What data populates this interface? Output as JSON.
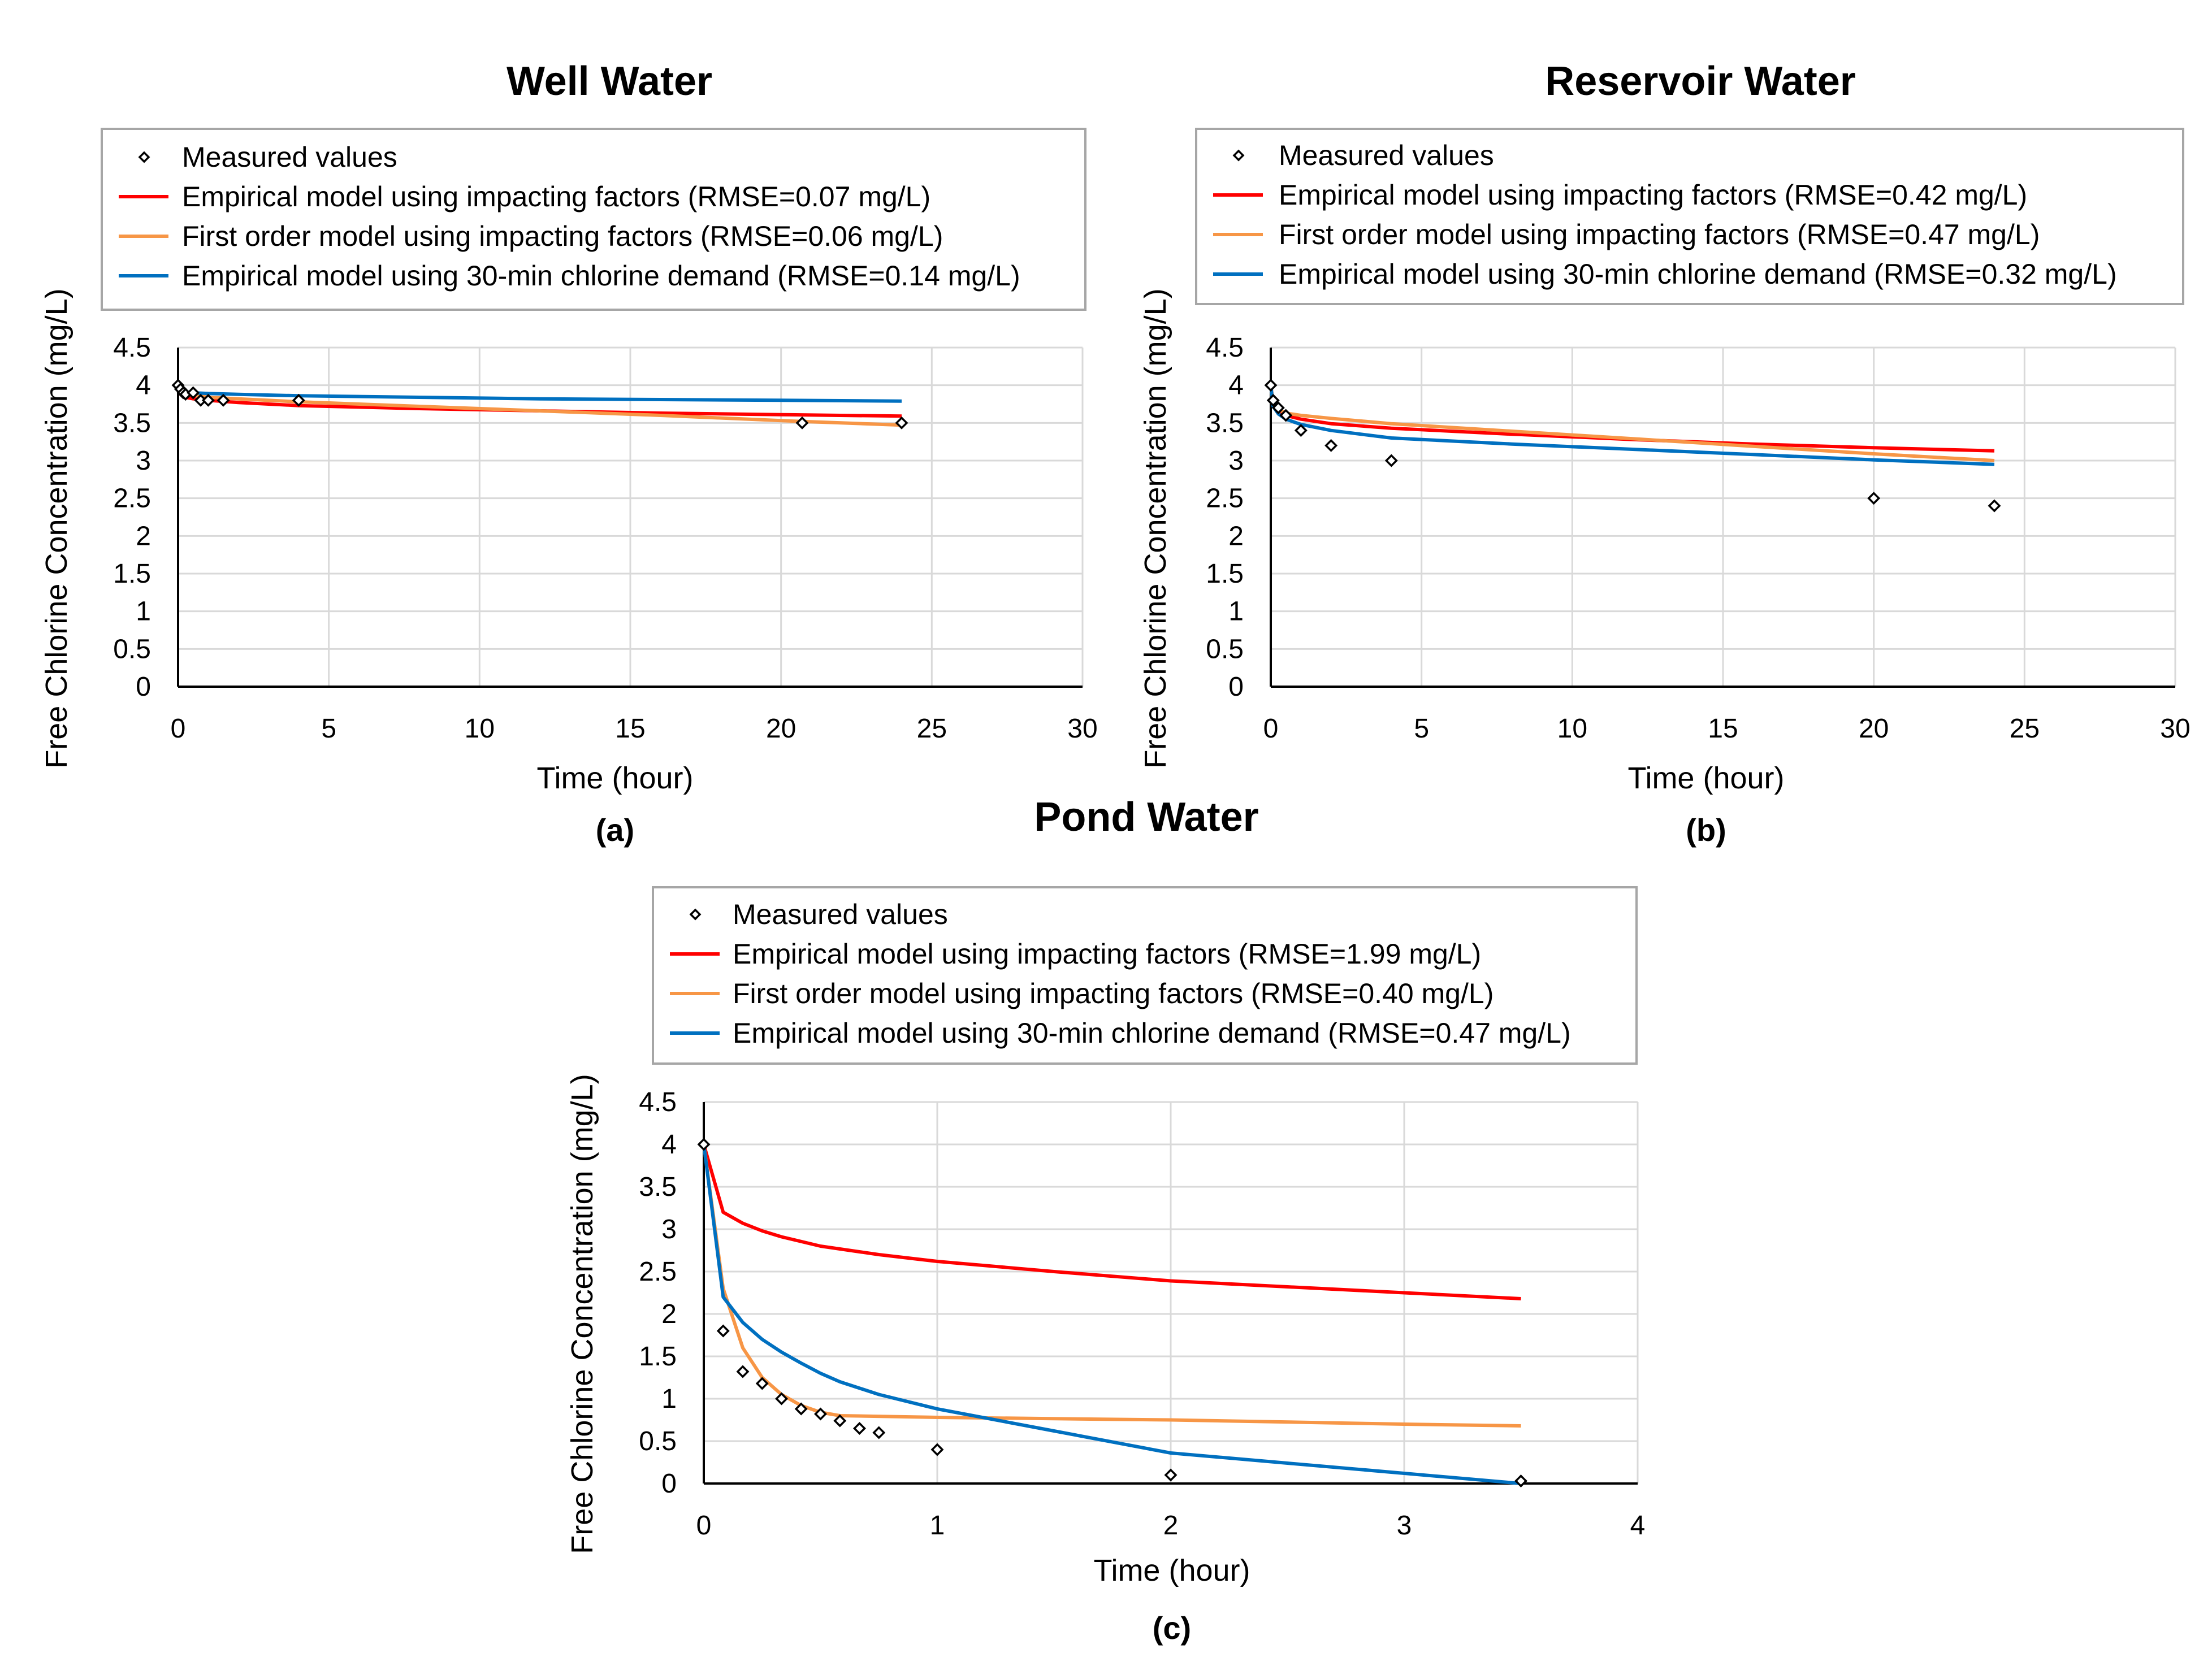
{
  "colors": {
    "empirical": "#ff0000",
    "first_order": "#f79646",
    "demand": "#0070c0",
    "measured": "#000000",
    "grid": "#d9d9d9"
  },
  "chart_data": [
    {
      "id": "well",
      "type": "scatter+line",
      "title": "Well Water",
      "panel_label": "(a)",
      "xlabel": "Time (hour)",
      "ylabel": "Free Chlorine Concentration (mg/L)",
      "xlim": [
        0,
        30
      ],
      "ylim": [
        0,
        4.5
      ],
      "xticks": [
        0,
        5,
        10,
        15,
        20,
        25,
        30
      ],
      "yticks": [
        0,
        0.5,
        1,
        1.5,
        2,
        2.5,
        3,
        3.5,
        4,
        4.5
      ],
      "legend": [
        {
          "key": "measured",
          "label": "Measured values"
        },
        {
          "key": "empirical",
          "label": "Empirical model using impacting factors (RMSE=0.07 mg/L)"
        },
        {
          "key": "first_order",
          "label": "First order model using impacting factors (RMSE=0.06 mg/L)"
        },
        {
          "key": "demand",
          "label": "Empirical model using 30-min chlorine demand (RMSE=0.14 mg/L)"
        }
      ],
      "measured": {
        "x": [
          0,
          0.08,
          0.17,
          0.25,
          0.5,
          0.75,
          1,
          1.5,
          4,
          20.7,
          24
        ],
        "y": [
          4.0,
          3.95,
          3.9,
          3.88,
          3.9,
          3.8,
          3.8,
          3.8,
          3.8,
          3.5,
          3.5
        ]
      },
      "series": [
        {
          "key": "empirical",
          "x": [
            0,
            0.08,
            0.25,
            0.5,
            1,
            2,
            4,
            8,
            12,
            16,
            20,
            24
          ],
          "y": [
            4.0,
            3.88,
            3.84,
            3.82,
            3.8,
            3.77,
            3.73,
            3.69,
            3.66,
            3.63,
            3.61,
            3.59
          ]
        },
        {
          "key": "first_order",
          "x": [
            0,
            0.08,
            0.25,
            0.5,
            1,
            2,
            4,
            8,
            12,
            16,
            20,
            24
          ],
          "y": [
            4.0,
            3.95,
            3.9,
            3.87,
            3.84,
            3.82,
            3.78,
            3.72,
            3.66,
            3.6,
            3.53,
            3.47
          ]
        },
        {
          "key": "demand",
          "x": [
            0,
            0.08,
            0.25,
            0.5,
            1,
            2,
            4,
            8,
            12,
            16,
            20,
            24
          ],
          "y": [
            4.0,
            3.93,
            3.91,
            3.9,
            3.89,
            3.88,
            3.86,
            3.84,
            3.82,
            3.81,
            3.8,
            3.79
          ]
        }
      ]
    },
    {
      "id": "reservoir",
      "type": "scatter+line",
      "title": "Reservoir Water",
      "panel_label": "(b)",
      "xlabel": "Time (hour)",
      "ylabel": "Free Chlorine Concentration (mg/L)",
      "xlim": [
        0,
        30
      ],
      "ylim": [
        0,
        4.5
      ],
      "xticks": [
        0,
        5,
        10,
        15,
        20,
        25,
        30
      ],
      "yticks": [
        0,
        0.5,
        1,
        1.5,
        2,
        2.5,
        3,
        3.5,
        4,
        4.5
      ],
      "legend": [
        {
          "key": "measured",
          "label": "Measured values"
        },
        {
          "key": "empirical",
          "label": "Empirical model using impacting factors (RMSE=0.42 mg/L)"
        },
        {
          "key": "first_order",
          "label": "First order model using impacting factors (RMSE=0.47 mg/L)"
        },
        {
          "key": "demand",
          "label": "Empirical model using 30-min chlorine demand (RMSE=0.32 mg/L)"
        }
      ],
      "measured": {
        "x": [
          0,
          0.08,
          0.25,
          0.5,
          1,
          2,
          4,
          20,
          24
        ],
        "y": [
          4.0,
          3.8,
          3.7,
          3.6,
          3.4,
          3.2,
          3.0,
          2.5,
          2.4
        ]
      },
      "series": [
        {
          "key": "empirical",
          "x": [
            0,
            0.08,
            0.25,
            0.5,
            1,
            2,
            4,
            8,
            12,
            16,
            20,
            24
          ],
          "y": [
            4.0,
            3.75,
            3.66,
            3.6,
            3.55,
            3.49,
            3.43,
            3.35,
            3.28,
            3.22,
            3.17,
            3.13
          ]
        },
        {
          "key": "first_order",
          "x": [
            0,
            0.08,
            0.25,
            0.5,
            1,
            2,
            4,
            8,
            12,
            16,
            20,
            24
          ],
          "y": [
            4.0,
            3.75,
            3.68,
            3.63,
            3.6,
            3.56,
            3.49,
            3.39,
            3.29,
            3.19,
            3.09,
            3.0
          ]
        },
        {
          "key": "demand",
          "x": [
            0,
            0.08,
            0.25,
            0.5,
            1,
            2,
            4,
            8,
            12,
            16,
            20,
            24
          ],
          "y": [
            4.0,
            3.72,
            3.62,
            3.55,
            3.48,
            3.4,
            3.3,
            3.22,
            3.15,
            3.08,
            3.01,
            2.95
          ]
        }
      ]
    },
    {
      "id": "pond",
      "type": "scatter+line",
      "title": "Pond Water",
      "panel_label": "(c)",
      "xlabel": "Time (hour)",
      "ylabel": "Free Chlorine Concentration (mg/L)",
      "xlim": [
        0,
        4
      ],
      "ylim": [
        0,
        4.5
      ],
      "xticks": [
        0,
        1,
        2,
        3,
        4
      ],
      "yticks": [
        0,
        0.5,
        1,
        1.5,
        2,
        2.5,
        3,
        3.5,
        4,
        4.5
      ],
      "legend": [
        {
          "key": "measured",
          "label": "Measured values"
        },
        {
          "key": "empirical",
          "label": "Empirical model using impacting factors (RMSE=1.99 mg/L)"
        },
        {
          "key": "first_order",
          "label": "First order model using impacting factors (RMSE=0.40 mg/L)"
        },
        {
          "key": "demand",
          "label": "Empirical model using 30-min chlorine demand (RMSE=0.47 mg/L)"
        }
      ],
      "measured": {
        "x": [
          0,
          0.083,
          0.167,
          0.25,
          0.333,
          0.417,
          0.5,
          0.583,
          0.667,
          0.75,
          1,
          2,
          3.5
        ],
        "y": [
          4.0,
          1.8,
          1.32,
          1.18,
          1.0,
          0.88,
          0.82,
          0.74,
          0.65,
          0.6,
          0.4,
          0.1,
          0.03
        ]
      },
      "series": [
        {
          "key": "empirical",
          "x": [
            0,
            0.083,
            0.167,
            0.25,
            0.333,
            0.5,
            0.75,
            1,
            1.5,
            2,
            2.5,
            3,
            3.5
          ],
          "y": [
            4.0,
            3.2,
            3.07,
            2.98,
            2.91,
            2.8,
            2.7,
            2.62,
            2.5,
            2.39,
            2.32,
            2.25,
            2.18
          ]
        },
        {
          "key": "first_order",
          "x": [
            0,
            0.083,
            0.167,
            0.25,
            0.333,
            0.417,
            0.5,
            0.583,
            1,
            2,
            3,
            3.5
          ],
          "y": [
            4.0,
            2.3,
            1.6,
            1.25,
            1.05,
            0.92,
            0.84,
            0.8,
            0.78,
            0.75,
            0.7,
            0.68
          ]
        },
        {
          "key": "demand",
          "x": [
            0,
            0.083,
            0.167,
            0.25,
            0.333,
            0.417,
            0.5,
            0.583,
            0.75,
            1,
            1.5,
            2,
            2.5,
            3,
            3.5
          ],
          "y": [
            4.0,
            2.2,
            1.9,
            1.7,
            1.55,
            1.42,
            1.3,
            1.2,
            1.05,
            0.88,
            0.62,
            0.36,
            0.24,
            0.12,
            0.0
          ]
        }
      ]
    }
  ]
}
